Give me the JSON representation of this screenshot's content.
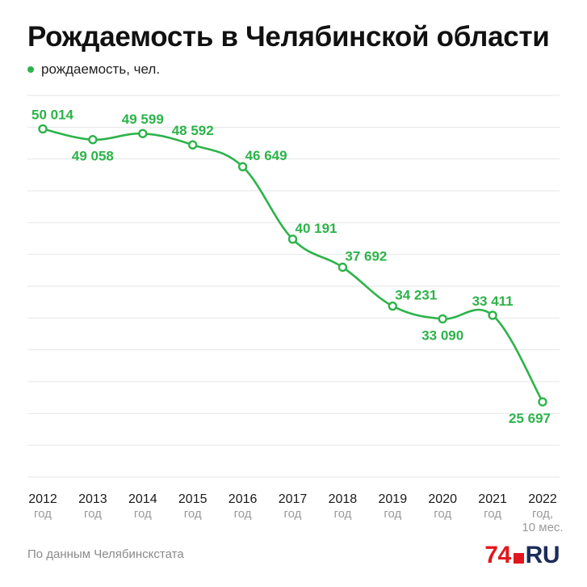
{
  "title": "Рождаемость в Челябинской области",
  "legend": {
    "label": "рождаемость, чел."
  },
  "source": "По данным Челябинскстата",
  "logo": {
    "number": "74",
    "suffix": "RU"
  },
  "colors": {
    "series": "#2db34a",
    "grid": "#e6e6e6",
    "tick_sub": "#9a9a9a"
  },
  "chart_data": {
    "type": "line",
    "title": "Рождаемость в Челябинской области",
    "categories": [
      "2012",
      "2013",
      "2014",
      "2015",
      "2016",
      "2017",
      "2018",
      "2019",
      "2020",
      "2021",
      "2022"
    ],
    "category_sublabels": [
      "год",
      "год",
      "год",
      "год",
      "год",
      "год",
      "год",
      "год",
      "год",
      "год",
      "год,\n10 мес."
    ],
    "series": [
      {
        "name": "рождаемость, чел.",
        "values": [
          50014,
          49058,
          49599,
          48592,
          46649,
          40191,
          37692,
          34231,
          33090,
          33411,
          25697
        ],
        "value_labels": [
          "50 014",
          "49 058",
          "49 599",
          "48 592",
          "46 649",
          "40 191",
          "37 692",
          "34 231",
          "33 090",
          "33 411",
          "25 697"
        ]
      }
    ],
    "label_positions": [
      "above",
      "below",
      "above",
      "above",
      "above-right",
      "above-right",
      "above-right",
      "above-right",
      "below",
      "above",
      "below"
    ],
    "ylim": [
      19000,
      53000
    ],
    "grid": true,
    "legend_position": "top-left"
  }
}
